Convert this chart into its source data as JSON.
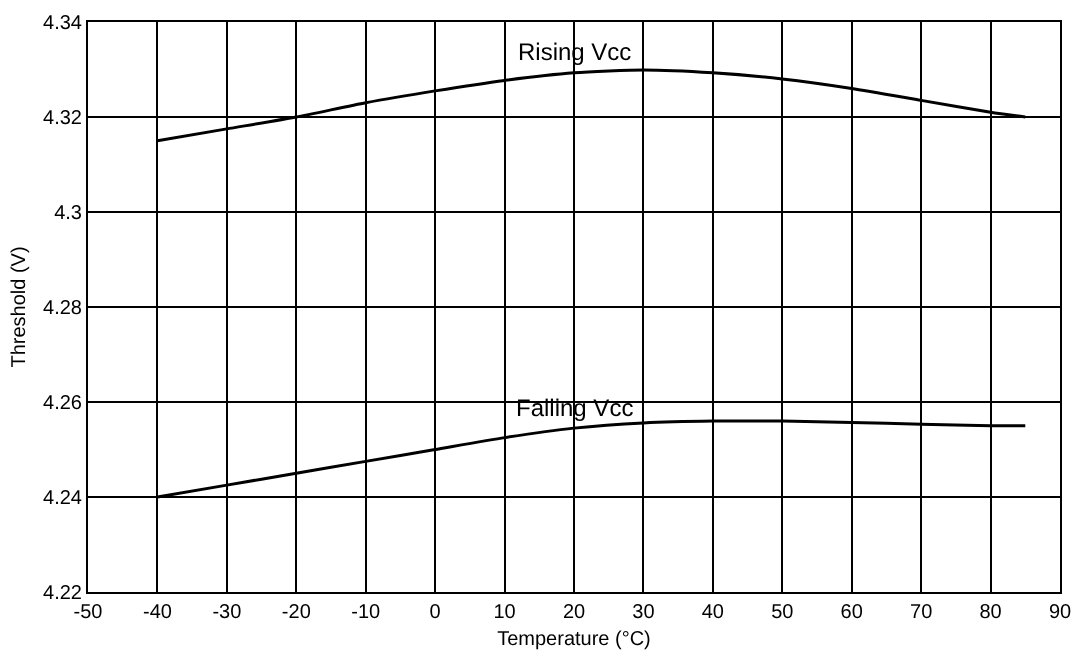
{
  "chart_data": {
    "type": "line",
    "xlabel": "Temperature (°C)",
    "ylabel": "Threshold (V)",
    "x": [
      -40,
      -30,
      -20,
      -10,
      0,
      10,
      20,
      30,
      40,
      50,
      60,
      70,
      80,
      85
    ],
    "series": [
      {
        "name": "Rising Vcc",
        "color": "#000000",
        "values": [
          4.315,
          4.3175,
          4.32,
          4.323,
          4.3255,
          4.3277,
          4.3293,
          4.3299,
          4.3293,
          4.328,
          4.326,
          4.3235,
          4.321,
          4.32
        ]
      },
      {
        "name": "Falling Vcc",
        "color": "#000000",
        "values": [
          4.24,
          4.2425,
          4.245,
          4.2475,
          4.25,
          4.2525,
          4.2545,
          4.2556,
          4.256,
          4.256,
          4.2557,
          4.2553,
          4.255,
          4.255
        ]
      }
    ],
    "xlim": [
      -50,
      90
    ],
    "xticks": [
      -50,
      -40,
      -30,
      -20,
      -10,
      0,
      10,
      20,
      30,
      40,
      50,
      60,
      70,
      80,
      90
    ],
    "ylim": [
      4.22,
      4.34
    ],
    "yticks": [
      4.22,
      4.24,
      4.26,
      4.28,
      {
        "value": 4.3,
        "label": "4.3"
      },
      4.32,
      4.34
    ],
    "grid": true,
    "legend": false,
    "marker": "none",
    "line_style": "solid"
  }
}
